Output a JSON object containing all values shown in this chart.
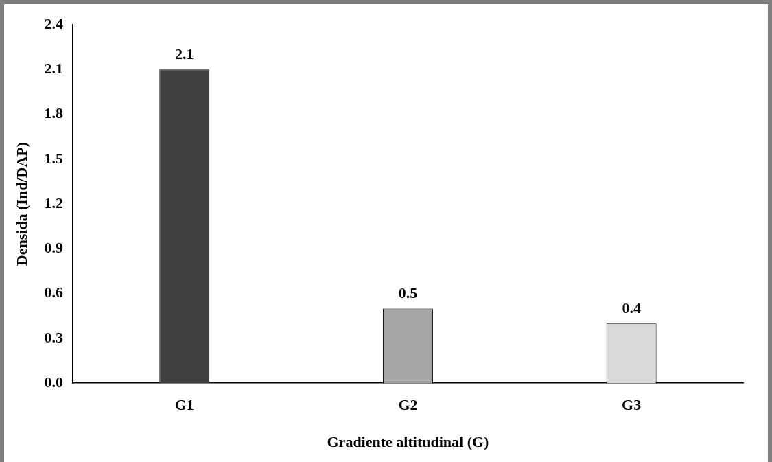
{
  "chart_data": {
    "type": "bar",
    "xlabel": "Gradiente altitudinal (G)",
    "ylabel": "Densida (Ind/DAP)",
    "categories": [
      "G1",
      "G2",
      "G3"
    ],
    "values": [
      2.1,
      0.5,
      0.4
    ],
    "colors": [
      "#404040",
      "#a6a6a6",
      "#d9d9d9"
    ],
    "ylim": [
      0,
      2.4
    ],
    "yticks": [
      {
        "value": 0,
        "label": "0.0"
      },
      {
        "value": 0.3,
        "label": "0.3"
      },
      {
        "value": 0.6,
        "label": "0.6"
      },
      {
        "value": 0.9,
        "label": "0.9"
      },
      {
        "value": 1.2,
        "label": "1.2"
      },
      {
        "value": 1.5,
        "label": "1.5"
      },
      {
        "value": 1.8,
        "label": "1.8"
      },
      {
        "value": 2.1,
        "label": "2.1"
      },
      {
        "value": 2.4,
        "label": "2.4"
      }
    ],
    "grid": false,
    "legend": false,
    "data_labels": true
  }
}
